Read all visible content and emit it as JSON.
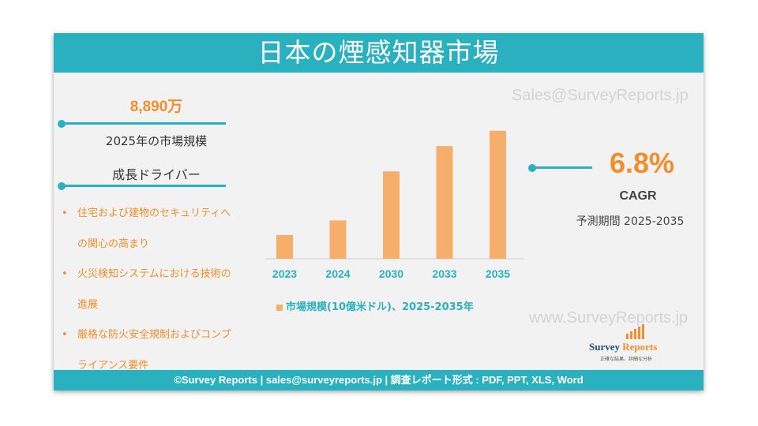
{
  "title": "日本の煙感知器市場",
  "watermark": "Sales@SurveyReports.jp",
  "watermark_bottom": "www.SurveyReports.jp",
  "market_size": {
    "value": "8,890万",
    "label": "2025年の市場規模"
  },
  "drivers": {
    "heading": "成長ドライバー",
    "lines": [
      {
        "bullet": "•",
        "text": "住宅および建物のセキュリティへ"
      },
      {
        "bullet": "",
        "text": "の関心の高まり"
      },
      {
        "bullet": "•",
        "text": "火災検知システムにおける技術の"
      },
      {
        "bullet": "",
        "text": "進展"
      },
      {
        "bullet": "•",
        "text": "厳格な防火安全規制およびコンプ"
      },
      {
        "bullet": "",
        "text": "ライアンス要件"
      }
    ]
  },
  "cagr": {
    "value": "6.8%",
    "label": "CAGR",
    "period": "予測期間 2025-2035"
  },
  "legend": "市場規模(10億米ドル)、2025-2035年",
  "footer": "©Survey Reports | sales@surveyreports.jp |  調査レポート形式 : PDF, PPT, XLS, Word",
  "logo": {
    "name_part1": "Survey ",
    "name_part2": "Reports",
    "tagline": "正確な結果、詳細な分析"
  },
  "colors": {
    "teal": "#2ab1bf",
    "orange": "#f28e2b",
    "bar": "#f6ae6b"
  },
  "chart_data": {
    "type": "bar",
    "categories": [
      "2023",
      "2024",
      "2030",
      "2033",
      "2035"
    ],
    "values": [
      0.31,
      0.5,
      1.14,
      1.47,
      1.67
    ],
    "series": [
      {
        "name": "市場規模(10億米ドル)、2025-2035年",
        "values": [
          0.31,
          0.5,
          1.14,
          1.47,
          1.67
        ]
      }
    ],
    "ylim": [
      0,
      1.75
    ],
    "xlabel": "",
    "ylabel": "",
    "grid": false,
    "legend_position": "bottom"
  }
}
